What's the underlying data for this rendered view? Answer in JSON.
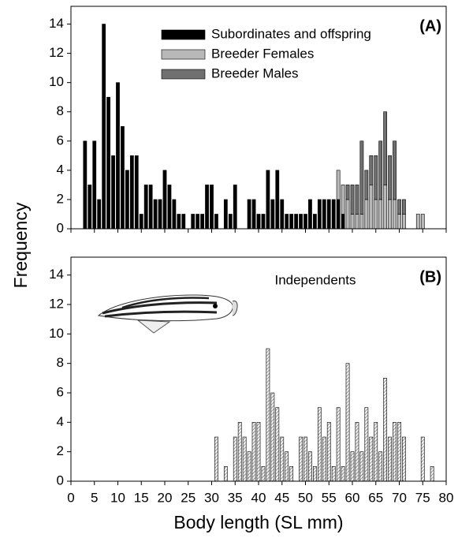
{
  "chart_data": [
    {
      "type": "bar",
      "panel_label": "(A)",
      "ylabel": "Frequency",
      "x": [
        3,
        4,
        5,
        6,
        7,
        8,
        9,
        10,
        11,
        12,
        13,
        14,
        15,
        16,
        17,
        18,
        19,
        20,
        21,
        22,
        23,
        24,
        25,
        26,
        27,
        28,
        29,
        30,
        31,
        32,
        33,
        34,
        35,
        36,
        37,
        38,
        39,
        40,
        41,
        42,
        43,
        44,
        45,
        46,
        47,
        48,
        49,
        50,
        51,
        52,
        53,
        54,
        55,
        56,
        57,
        58,
        59,
        60,
        61,
        62,
        63,
        64,
        65,
        66,
        67,
        68,
        69,
        70,
        71,
        72,
        73,
        74,
        75
      ],
      "series": [
        {
          "name": "Subordinates and offspring",
          "color": "#000000",
          "values": [
            6,
            3,
            6,
            2,
            14,
            9,
            5,
            10,
            7,
            4,
            5,
            5,
            1,
            3,
            3,
            2,
            2,
            4,
            3,
            2,
            1,
            1,
            0,
            1,
            1,
            1,
            3,
            3,
            1,
            0,
            2,
            1,
            3,
            0,
            0,
            2,
            2,
            1,
            1,
            4,
            2,
            4,
            2,
            1,
            1,
            1,
            1,
            1,
            2,
            1,
            2,
            2,
            2,
            2,
            2,
            1,
            0,
            0,
            0,
            0,
            0,
            0,
            0,
            0,
            0,
            0,
            0,
            0,
            0,
            0,
            0,
            0,
            0
          ]
        },
        {
          "name": "Breeder Females",
          "color": "#b8b8b8",
          "values": [
            0,
            0,
            0,
            0,
            0,
            0,
            0,
            0,
            0,
            0,
            0,
            0,
            0,
            0,
            0,
            0,
            0,
            0,
            0,
            0,
            0,
            0,
            0,
            0,
            0,
            0,
            0,
            0,
            0,
            0,
            0,
            0,
            0,
            0,
            0,
            0,
            0,
            0,
            0,
            0,
            0,
            0,
            0,
            0,
            0,
            0,
            0,
            0,
            0,
            0,
            0,
            0,
            0,
            0,
            2,
            2,
            2,
            1,
            1,
            1,
            2,
            3,
            2,
            2,
            3,
            2,
            2,
            1,
            1,
            0,
            0,
            1,
            1
          ]
        },
        {
          "name": "Breeder Males",
          "color": "#707070",
          "values": [
            0,
            0,
            0,
            0,
            0,
            0,
            0,
            0,
            0,
            0,
            0,
            0,
            0,
            0,
            0,
            0,
            0,
            0,
            0,
            0,
            0,
            0,
            0,
            0,
            0,
            0,
            0,
            0,
            0,
            0,
            0,
            0,
            0,
            0,
            0,
            0,
            0,
            0,
            0,
            0,
            0,
            0,
            0,
            0,
            0,
            0,
            0,
            0,
            0,
            0,
            0,
            0,
            0,
            0,
            0,
            0,
            1,
            2,
            2,
            5,
            2,
            2,
            3,
            4,
            5,
            3,
            4,
            1,
            1,
            0,
            0,
            0,
            0
          ]
        }
      ],
      "xlim": [
        0,
        80
      ],
      "xticks": [
        0,
        5,
        10,
        15,
        20,
        25,
        30,
        35,
        40,
        45,
        50,
        55,
        60,
        65,
        70,
        75,
        80
      ],
      "show_xtick_labels": false,
      "ylim": [
        0,
        15
      ],
      "yticks": [
        0,
        2,
        4,
        6,
        8,
        10,
        12,
        14
      ],
      "legend": "upper right"
    },
    {
      "type": "bar",
      "panel_label": "(B)",
      "annotation": "Independents",
      "xlabel": "Body length (SL mm)",
      "x": [
        31,
        32,
        33,
        34,
        35,
        36,
        37,
        38,
        39,
        40,
        41,
        42,
        43,
        44,
        45,
        46,
        47,
        48,
        49,
        50,
        51,
        52,
        53,
        54,
        55,
        56,
        57,
        58,
        59,
        60,
        61,
        62,
        63,
        64,
        65,
        66,
        67,
        68,
        69,
        70,
        71,
        72,
        73,
        74,
        75,
        76,
        77
      ],
      "series": [
        {
          "color": "#d8d8d8",
          "hatch": true,
          "values": [
            3,
            0,
            1,
            0,
            3,
            4,
            3,
            2,
            4,
            4,
            1,
            9,
            6,
            5,
            3,
            2,
            1,
            0,
            3,
            3,
            2,
            1,
            5,
            3,
            4,
            1,
            5,
            1,
            8,
            2,
            4,
            2,
            5,
            3,
            4,
            2,
            7,
            3,
            4,
            4,
            3,
            0,
            0,
            0,
            3,
            0,
            1
          ]
        }
      ],
      "xlim": [
        0,
        80
      ],
      "xticks": [
        0,
        5,
        10,
        15,
        20,
        25,
        30,
        35,
        40,
        45,
        50,
        55,
        60,
        65,
        70,
        75,
        80
      ],
      "show_xtick_labels": true,
      "ylim": [
        0,
        15
      ],
      "yticks": [
        0,
        2,
        4,
        6,
        8,
        10,
        12,
        14
      ]
    }
  ]
}
